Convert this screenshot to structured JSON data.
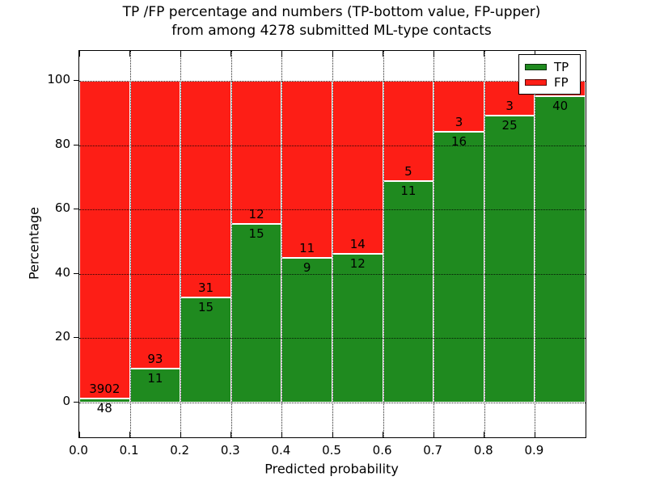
{
  "figure": {
    "title_line1": "TP /FP percentage and numbers (TP-bottom value, FP-upper)",
    "title_line2": "from among 4278 submitted ML-type contacts",
    "background": "#ffffff"
  },
  "axes": {
    "xlabel": "Predicted probability",
    "ylabel": "Percentage",
    "xlim": [
      0.0,
      1.0
    ],
    "ylim": [
      -10.8,
      109.3
    ],
    "xtick_labels": [
      "0.0",
      "0.1",
      "0.2",
      "0.3",
      "0.4",
      "0.5",
      "0.6",
      "0.7",
      "0.8",
      "0.9"
    ],
    "ytick_values": [
      0,
      20,
      40,
      60,
      80,
      100
    ],
    "grid": "dotted-black-over-bars"
  },
  "legend": {
    "items": [
      {
        "label": "TP",
        "color": "#1f8a1f"
      },
      {
        "label": "FP",
        "color": "#fd1e16"
      }
    ]
  },
  "chart_data": {
    "type": "bar",
    "stacked": true,
    "normalized_to_percent": true,
    "bin_width": 0.1,
    "x_bin_starts": [
      0.0,
      0.1,
      0.2,
      0.3,
      0.4,
      0.5,
      0.6,
      0.7,
      0.8,
      0.9
    ],
    "title": "TP /FP percentage and numbers (TP-bottom value, FP-upper) from among 4278 submitted ML-type contacts",
    "xlabel": "Predicted probability",
    "ylabel": "Percentage",
    "series": [
      {
        "name": "TP",
        "color": "#1f8a1f",
        "stack_position": "bottom",
        "counts": [
          48,
          11,
          15,
          15,
          9,
          12,
          11,
          16,
          25,
          40
        ],
        "percents": [
          1.2,
          10.6,
          32.6,
          55.6,
          45.0,
          46.2,
          68.8,
          84.2,
          89.3,
          95.2
        ],
        "labels": [
          "48",
          "11",
          "15",
          "15",
          "9",
          "12",
          "11",
          "16",
          "25",
          "40"
        ]
      },
      {
        "name": "FP",
        "color": "#fd1e16",
        "stack_position": "top",
        "counts": [
          3902,
          93,
          31,
          12,
          11,
          14,
          5,
          3,
          3,
          null
        ],
        "percents": [
          98.8,
          89.4,
          67.4,
          44.4,
          55.0,
          53.8,
          31.2,
          15.8,
          10.7,
          4.8
        ],
        "labels": [
          "3902",
          "93",
          "31",
          "12",
          "11",
          "14",
          "5",
          "3",
          "3",
          ""
        ]
      }
    ]
  }
}
